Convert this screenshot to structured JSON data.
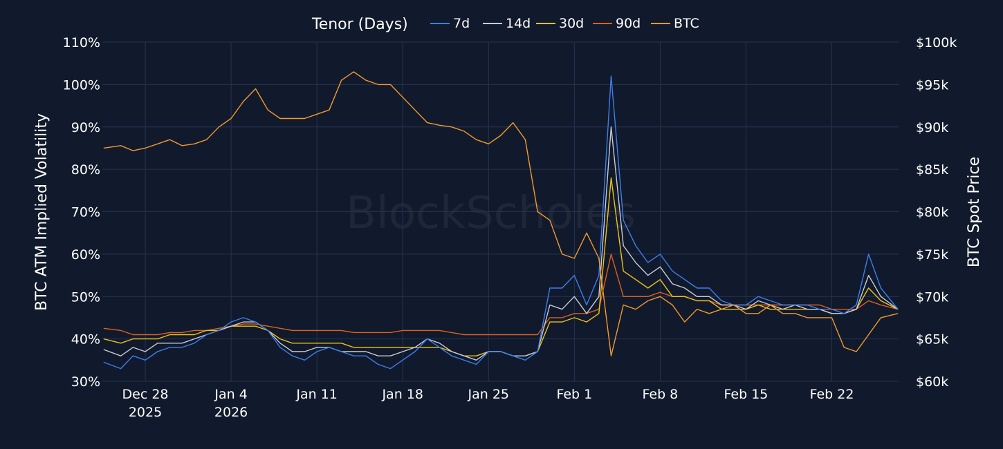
{
  "chart_data": {
    "type": "line",
    "legend": {
      "title": "Tenor (Days)",
      "placement": "top-center"
    },
    "watermark": "BlockScholes",
    "x_axis": {
      "range": [
        -3.5,
        61.5
      ],
      "ticks": [
        {
          "day": 0,
          "label": "Dec 28",
          "sublabel": "2025"
        },
        {
          "day": 7,
          "label": "Jan 4",
          "sublabel": "2026"
        },
        {
          "day": 14,
          "label": "Jan 11",
          "sublabel": ""
        },
        {
          "day": 21,
          "label": "Jan 18",
          "sublabel": ""
        },
        {
          "day": 28,
          "label": "Jan 25",
          "sublabel": ""
        },
        {
          "day": 35,
          "label": "Feb 1",
          "sublabel": ""
        },
        {
          "day": 42,
          "label": "Feb 8",
          "sublabel": ""
        },
        {
          "day": 49,
          "label": "Feb 15",
          "sublabel": ""
        },
        {
          "day": 56,
          "label": "Feb 22",
          "sublabel": ""
        }
      ]
    },
    "y_left": {
      "title": "BTC ATM Implied Volatility",
      "range": [
        30,
        110
      ],
      "ticks": [
        30,
        40,
        50,
        60,
        70,
        80,
        90,
        100,
        110
      ],
      "tick_labels": [
        "30%",
        "40%",
        "50%",
        "60%",
        "70%",
        "80%",
        "90%",
        "100%",
        "110%"
      ]
    },
    "y_right": {
      "title": "BTC Spot Price",
      "range": [
        60000,
        100000
      ],
      "ticks": [
        60000,
        65000,
        70000,
        75000,
        80000,
        85000,
        90000,
        95000,
        100000
      ],
      "tick_labels": [
        "$60k",
        "$65k",
        "$70k",
        "$75k",
        "$80k",
        "$85k",
        "$90k",
        "$95k",
        "$100k"
      ]
    },
    "series": [
      {
        "name": "7d",
        "color": "#3d7ef0",
        "axis": "left",
        "x": [
          -3.4,
          -2,
          -1,
          0,
          1,
          2,
          3,
          4,
          5,
          6,
          7,
          8,
          9,
          10,
          11,
          12,
          13,
          14,
          15,
          16,
          17,
          18,
          19,
          20,
          21,
          22,
          23,
          24,
          25,
          26,
          27,
          28,
          29,
          30,
          31,
          32,
          33,
          34,
          35,
          36,
          37,
          38,
          39,
          40,
          41,
          42,
          43,
          44,
          45,
          46,
          47,
          48,
          49,
          50,
          51,
          52,
          53,
          54,
          55,
          56,
          57,
          58,
          59,
          60,
          61.4
        ],
        "y": [
          34.5,
          33,
          36,
          35,
          37,
          38,
          38,
          39,
          41,
          42,
          44,
          45,
          44,
          42,
          38,
          36,
          35,
          37,
          38,
          37,
          36,
          36,
          34,
          33,
          35,
          37,
          40,
          38,
          36,
          35,
          34,
          37,
          37,
          36,
          35,
          37,
          52,
          52,
          55,
          48,
          55,
          102,
          68,
          62,
          58,
          60,
          56,
          54,
          52,
          52,
          49,
          48,
          48,
          50,
          49,
          48,
          48,
          48,
          47,
          47,
          46,
          48,
          60,
          52,
          47
        ]
      },
      {
        "name": "14d",
        "color": "#c8ccd6",
        "axis": "left",
        "x": [
          -3.4,
          -2,
          -1,
          0,
          1,
          2,
          3,
          4,
          5,
          6,
          7,
          8,
          9,
          10,
          11,
          12,
          13,
          14,
          15,
          16,
          17,
          18,
          19,
          20,
          21,
          22,
          23,
          24,
          25,
          26,
          27,
          28,
          29,
          30,
          31,
          32,
          33,
          34,
          35,
          36,
          37,
          38,
          39,
          40,
          41,
          42,
          43,
          44,
          45,
          46,
          47,
          48,
          49,
          50,
          51,
          52,
          53,
          54,
          55,
          56,
          57,
          58,
          59,
          60,
          61.4
        ],
        "y": [
          37.5,
          36,
          38,
          37,
          39,
          39,
          39,
          40,
          41,
          42,
          43,
          44,
          44,
          42,
          39,
          37,
          37,
          38,
          38,
          37,
          37,
          37,
          36,
          36,
          37,
          38,
          40,
          39,
          37,
          36,
          35,
          37,
          37,
          36,
          36,
          37,
          48,
          47,
          50,
          46,
          50,
          90,
          62,
          58,
          55,
          57,
          53,
          52,
          50,
          50,
          48,
          48,
          47,
          49,
          48,
          47,
          48,
          47,
          47,
          46,
          46,
          47,
          55,
          50,
          47
        ]
      },
      {
        "name": "30d",
        "color": "#f2c318",
        "axis": "left",
        "x": [
          -3.4,
          -2,
          -1,
          0,
          1,
          2,
          3,
          4,
          5,
          6,
          7,
          8,
          9,
          10,
          11,
          12,
          13,
          14,
          15,
          16,
          17,
          18,
          19,
          20,
          21,
          22,
          23,
          24,
          25,
          26,
          27,
          28,
          29,
          30,
          31,
          32,
          33,
          34,
          35,
          36,
          37,
          38,
          39,
          40,
          41,
          42,
          43,
          44,
          45,
          46,
          47,
          48,
          49,
          50,
          51,
          52,
          53,
          54,
          55,
          56,
          57,
          58,
          59,
          60,
          61.4
        ],
        "y": [
          40,
          39,
          40,
          40,
          40,
          41,
          41,
          41,
          42,
          42,
          43,
          43,
          43,
          42,
          40,
          39,
          39,
          39,
          39,
          39,
          38,
          38,
          38,
          38,
          38,
          38,
          38,
          38,
          37,
          36,
          36,
          37,
          37,
          36,
          36,
          37,
          44,
          44,
          45,
          44,
          46,
          78,
          56,
          54,
          52,
          54,
          50,
          50,
          49,
          49,
          47,
          47,
          47,
          48,
          47,
          47,
          47,
          47,
          47,
          46,
          46,
          47,
          52,
          49,
          47
        ]
      },
      {
        "name": "90d",
        "color": "#e0601c",
        "axis": "left",
        "x": [
          -3.4,
          -2,
          -1,
          0,
          1,
          2,
          3,
          4,
          5,
          6,
          7,
          8,
          9,
          10,
          11,
          12,
          13,
          14,
          15,
          16,
          17,
          18,
          19,
          20,
          21,
          22,
          23,
          24,
          25,
          26,
          27,
          28,
          29,
          30,
          31,
          32,
          33,
          34,
          35,
          36,
          37,
          38,
          39,
          40,
          41,
          42,
          43,
          44,
          45,
          46,
          47,
          48,
          49,
          50,
          51,
          52,
          53,
          54,
          55,
          56,
          57,
          58,
          59,
          60,
          61.4
        ],
        "y": [
          42.5,
          42,
          41,
          41,
          41,
          41.5,
          41.5,
          42,
          42,
          42.5,
          43,
          43.5,
          43.5,
          43,
          42.5,
          42,
          42,
          42,
          42,
          42,
          41.5,
          41.5,
          41.5,
          41.5,
          42,
          42,
          42,
          42,
          41.5,
          41,
          41,
          41,
          41,
          41,
          41,
          41,
          45,
          45,
          46,
          46,
          47,
          60,
          50,
          50,
          50,
          51,
          50,
          50,
          49,
          49,
          48,
          48,
          48,
          48,
          48,
          48,
          48,
          48,
          48,
          47,
          47,
          47,
          49,
          48,
          47
        ]
      },
      {
        "name": "BTC",
        "color": "#f59a2c",
        "axis": "right",
        "x": [
          -3.4,
          -2,
          -1,
          0,
          1,
          2,
          3,
          4,
          5,
          6,
          7,
          8,
          9,
          10,
          11,
          12,
          13,
          14,
          15,
          16,
          17,
          18,
          19,
          20,
          21,
          22,
          23,
          24,
          25,
          26,
          27,
          28,
          29,
          30,
          31,
          32,
          33,
          34,
          35,
          36,
          37,
          38,
          39,
          40,
          41,
          42,
          43,
          44,
          45,
          46,
          47,
          48,
          49,
          50,
          51,
          52,
          53,
          54,
          55,
          56,
          57,
          58,
          59,
          60,
          61.4
        ],
        "y": [
          87500,
          87800,
          87200,
          87500,
          88000,
          88500,
          87800,
          88000,
          88500,
          90000,
          91000,
          93000,
          94500,
          92000,
          91000,
          91000,
          91000,
          91500,
          92000,
          95500,
          96500,
          95500,
          95000,
          95000,
          93500,
          92000,
          90500,
          90200,
          90000,
          89500,
          88500,
          88000,
          89000,
          90500,
          88500,
          80000,
          79000,
          75000,
          74500,
          77500,
          74500,
          63000,
          69000,
          68500,
          69500,
          70000,
          69000,
          67000,
          68500,
          68000,
          68500,
          69000,
          68000,
          68000,
          69000,
          68000,
          68000,
          67500,
          67500,
          67500,
          64000,
          63500,
          65500,
          67500,
          68000
        ]
      }
    ]
  }
}
